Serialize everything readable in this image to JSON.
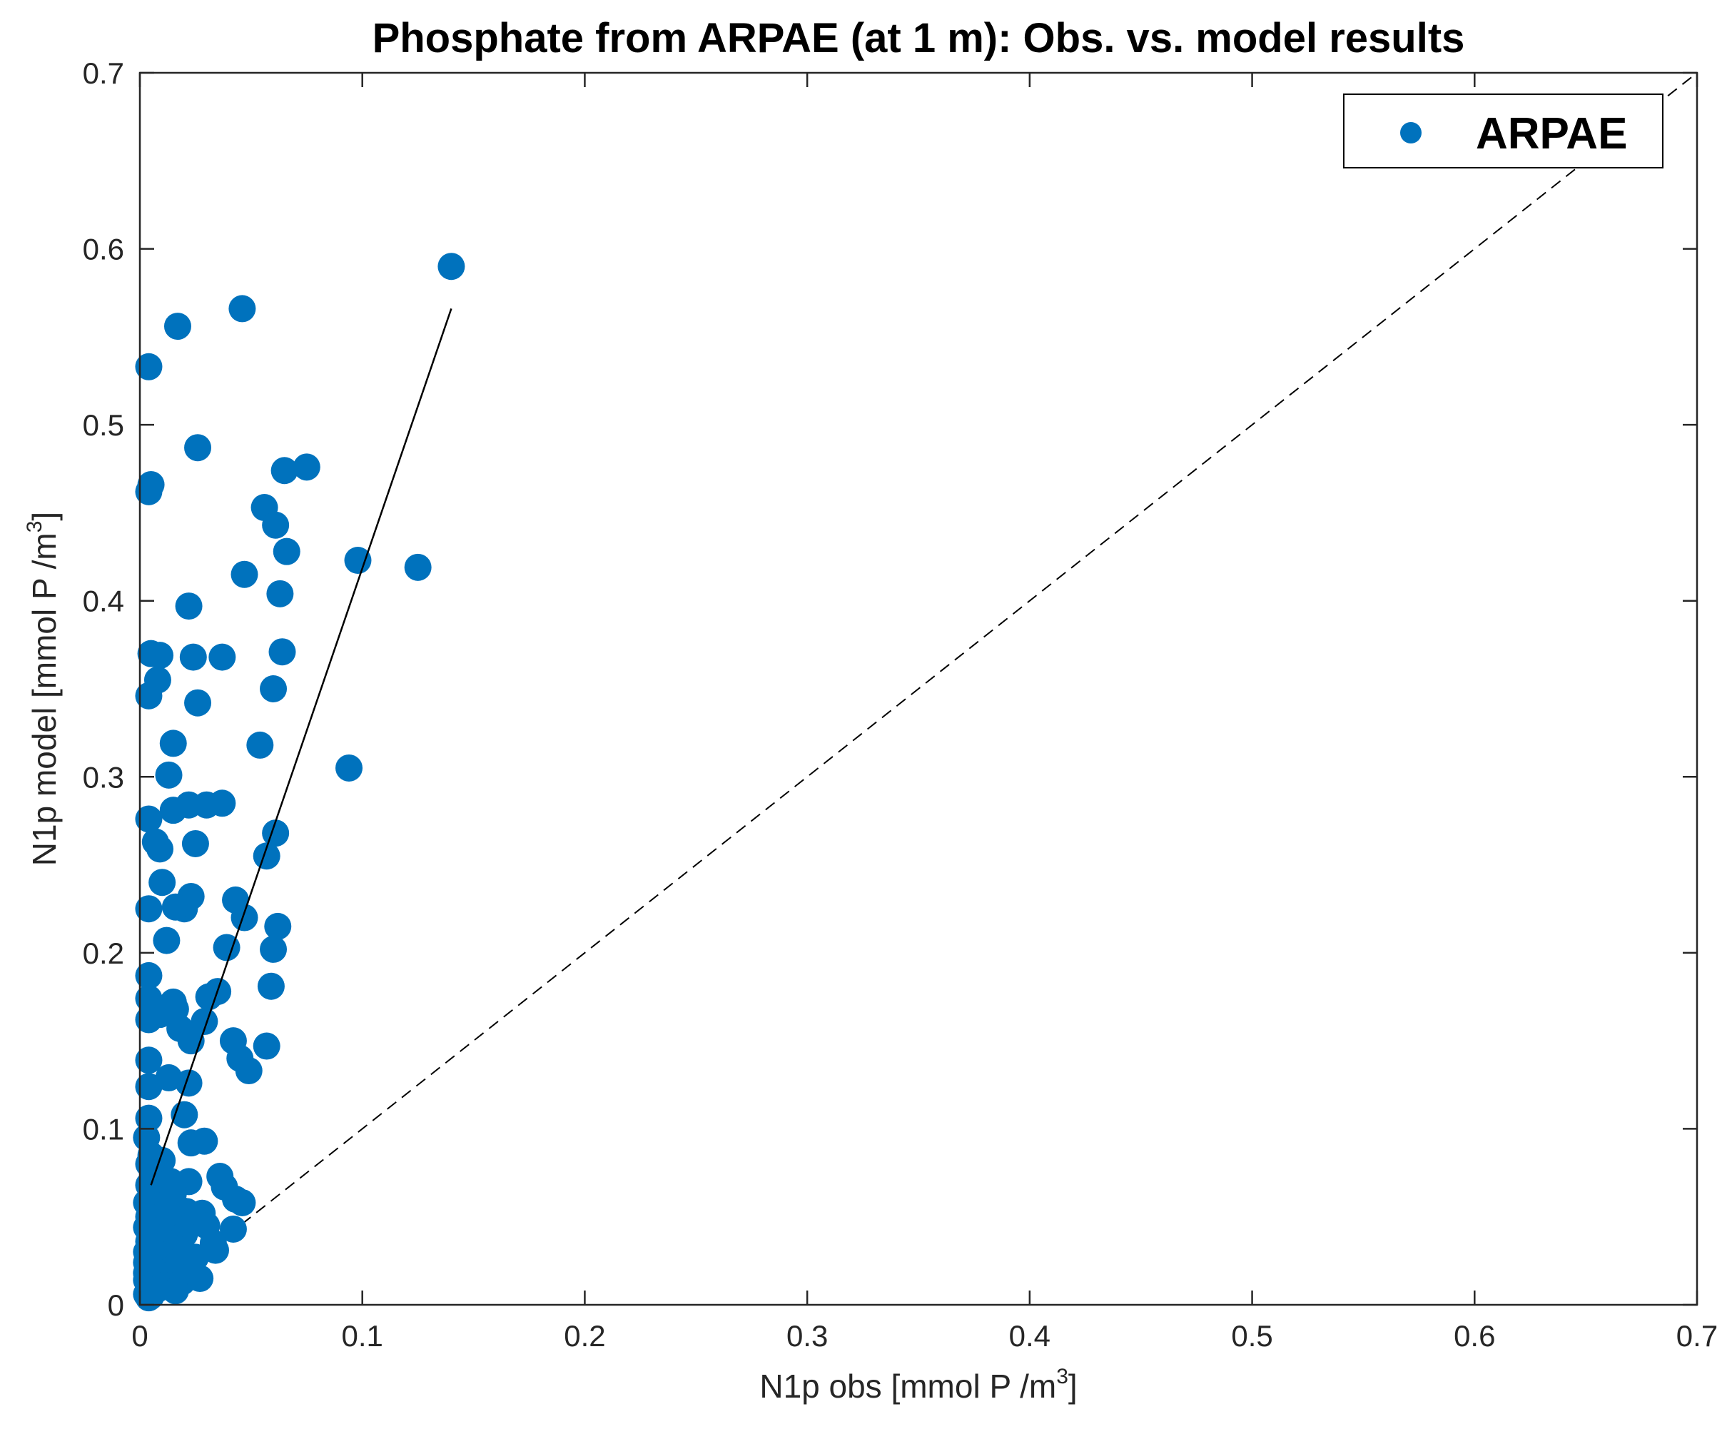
{
  "chart_data": {
    "type": "scatter",
    "title": "Phosphate from ARPAE (at 1 m): Obs. vs. model results",
    "xlabel": {
      "text": "N1p obs [mmol P /m",
      "sup": "3",
      "tail": "]"
    },
    "ylabel": {
      "text": "N1p model [mmol P /m",
      "sup": "3",
      "tail": "]"
    },
    "xlim": [
      0,
      0.7
    ],
    "ylim": [
      0,
      0.7
    ],
    "xticks": [
      "0",
      "0.1",
      "0.2",
      "0.3",
      "0.4",
      "0.5",
      "0.6",
      "0.7"
    ],
    "yticks": [
      "0",
      "0.1",
      "0.2",
      "0.3",
      "0.4",
      "0.5",
      "0.6",
      "0.7"
    ],
    "grid": false,
    "legend": {
      "position": "top-right",
      "entries": [
        "ARPAE"
      ]
    },
    "colors": {
      "marker": "#0072BD",
      "axes": "#262626",
      "lines": "#000000"
    },
    "series": [
      {
        "name": "ARPAE",
        "x": [
          0.14,
          0.046,
          0.017,
          0.004,
          0.026,
          0.075,
          0.065,
          0.005,
          0.004,
          0.056,
          0.061,
          0.066,
          0.098,
          0.125,
          0.047,
          0.063,
          0.022,
          0.005,
          0.009,
          0.024,
          0.037,
          0.064,
          0.008,
          0.004,
          0.026,
          0.06,
          0.015,
          0.054,
          0.013,
          0.094,
          0.037,
          0.022,
          0.03,
          0.015,
          0.004,
          0.025,
          0.061,
          0.007,
          0.009,
          0.057,
          0.01,
          0.02,
          0.023,
          0.043,
          0.004,
          0.016,
          0.012,
          0.047,
          0.062,
          0.039,
          0.06,
          0.004,
          0.015,
          0.059,
          0.035,
          0.031,
          0.004,
          0.016,
          0.012,
          0.018,
          0.009,
          0.029,
          0.023,
          0.042,
          0.057,
          0.004,
          0.045,
          0.049,
          0.004,
          0.013,
          0.022,
          0.004,
          0.02,
          0.004,
          0.023,
          0.029,
          0.003,
          0.005,
          0.01,
          0.004,
          0.036,
          0.006,
          0.014,
          0.022,
          0.004,
          0.038,
          0.008,
          0.015,
          0.043,
          0.046,
          0.003,
          0.009,
          0.017,
          0.021,
          0.028,
          0.004,
          0.01,
          0.018,
          0.024,
          0.03,
          0.042,
          0.003,
          0.008,
          0.013,
          0.02,
          0.033,
          0.004,
          0.009,
          0.016,
          0.003,
          0.006,
          0.012,
          0.019,
          0.025,
          0.034,
          0.003,
          0.007,
          0.014,
          0.003,
          0.009,
          0.019,
          0.027,
          0.003,
          0.006,
          0.011,
          0.004,
          0.008,
          0.016,
          0.003,
          0.005,
          0.004
        ],
        "y": [
          0.59,
          0.566,
          0.556,
          0.533,
          0.487,
          0.476,
          0.474,
          0.466,
          0.462,
          0.453,
          0.443,
          0.428,
          0.423,
          0.419,
          0.415,
          0.404,
          0.397,
          0.37,
          0.369,
          0.368,
          0.368,
          0.371,
          0.355,
          0.346,
          0.342,
          0.35,
          0.319,
          0.318,
          0.301,
          0.305,
          0.285,
          0.284,
          0.284,
          0.281,
          0.276,
          0.262,
          0.268,
          0.263,
          0.259,
          0.255,
          0.24,
          0.225,
          0.232,
          0.23,
          0.225,
          0.226,
          0.207,
          0.22,
          0.215,
          0.203,
          0.202,
          0.187,
          0.172,
          0.181,
          0.178,
          0.175,
          0.174,
          0.168,
          0.166,
          0.157,
          0.165,
          0.161,
          0.15,
          0.15,
          0.147,
          0.162,
          0.14,
          0.133,
          0.139,
          0.129,
          0.126,
          0.124,
          0.108,
          0.106,
          0.092,
          0.093,
          0.095,
          0.085,
          0.082,
          0.08,
          0.073,
          0.075,
          0.07,
          0.07,
          0.068,
          0.067,
          0.065,
          0.063,
          0.06,
          0.058,
          0.058,
          0.056,
          0.055,
          0.053,
          0.052,
          0.05,
          0.048,
          0.048,
          0.046,
          0.045,
          0.043,
          0.044,
          0.042,
          0.04,
          0.04,
          0.035,
          0.036,
          0.034,
          0.032,
          0.03,
          0.028,
          0.027,
          0.026,
          0.027,
          0.031,
          0.024,
          0.021,
          0.02,
          0.018,
          0.017,
          0.013,
          0.015,
          0.014,
          0.012,
          0.011,
          0.01,
          0.009,
          0.008,
          0.006,
          0.005,
          0.004
        ]
      }
    ],
    "fit_line": {
      "x": [
        0.005,
        0.14
      ],
      "y": [
        0.068,
        0.566
      ],
      "style": "solid"
    },
    "reference_line": {
      "x": [
        0,
        0.7
      ],
      "y": [
        0,
        0.7
      ],
      "style": "dashed"
    }
  }
}
